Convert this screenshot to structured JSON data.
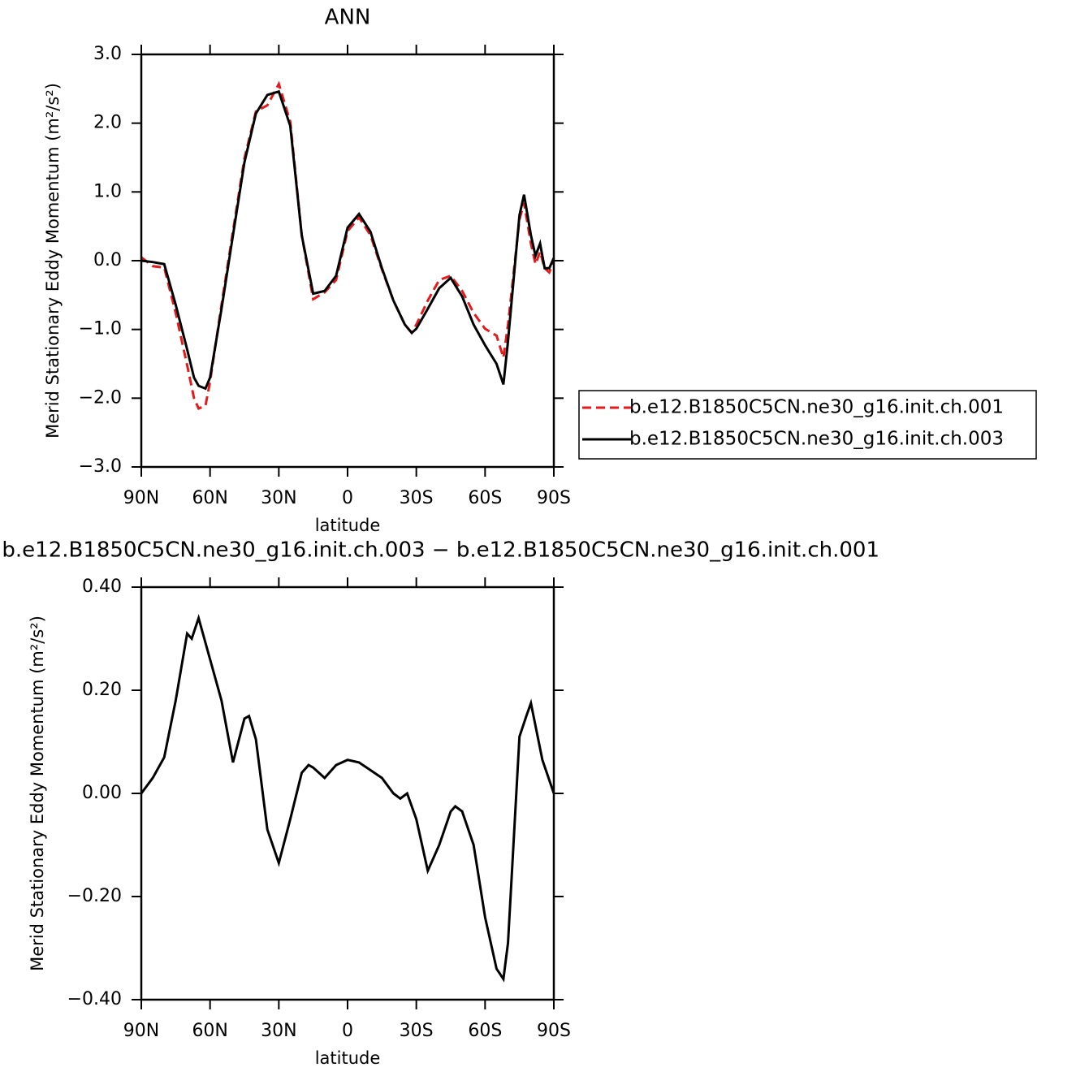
{
  "chart_data": [
    {
      "type": "line",
      "title": "ANN",
      "x_label": "latitude",
      "y_label": "Merid Stationary Eddy Momentum (m²/s²)",
      "xlim": [
        90,
        -90
      ],
      "xticks": [
        {
          "value": 90,
          "label": "90N"
        },
        {
          "value": 60,
          "label": "60N"
        },
        {
          "value": 30,
          "label": "30N"
        },
        0,
        {
          "value": -30,
          "label": "30S"
        },
        {
          "value": -60,
          "label": "60S"
        },
        {
          "value": -90,
          "label": "90S"
        }
      ],
      "ylim": [
        -3,
        3
      ],
      "yticks": [
        {
          "value": 3,
          "label": "3.0"
        },
        {
          "value": 2,
          "label": "2.0"
        },
        {
          "value": 1,
          "label": "1.0"
        },
        {
          "value": 0,
          "label": "0.0"
        },
        {
          "value": -1,
          "label": "−1.0"
        },
        {
          "value": -2,
          "label": "−2.0"
        },
        {
          "value": -3,
          "label": "−3.0"
        }
      ],
      "legend_position": "right",
      "x": [
        90,
        85,
        80,
        75,
        70,
        67,
        65,
        62,
        60,
        55,
        50,
        45,
        40,
        35,
        30,
        25,
        20,
        15,
        10,
        5,
        0,
        -5,
        -10,
        -15,
        -20,
        -25,
        -28,
        -30,
        -35,
        -40,
        -45,
        -50,
        -55,
        -60,
        -65,
        -68,
        -70,
        -75,
        -77,
        -80,
        -82,
        -84,
        -86,
        -88,
        -90
      ],
      "series": [
        {
          "name": "b.e12.B1850C5CN.ne30_g16.init.ch.001",
          "color": "#e41a1c",
          "line_style": "dashed",
          "values": [
            0.05,
            -0.08,
            -0.1,
            -0.76,
            -1.52,
            -2.0,
            -2.15,
            -2.11,
            -1.76,
            -0.64,
            0.43,
            1.49,
            2.17,
            2.26,
            2.57,
            2.02,
            0.37,
            -0.56,
            -0.46,
            -0.28,
            0.43,
            0.63,
            0.37,
            -0.13,
            -0.58,
            -0.93,
            -1.05,
            -0.93,
            -0.58,
            -0.28,
            -0.22,
            -0.44,
            -0.76,
            -0.99,
            -1.09,
            -1.41,
            -0.93,
            0.6,
            0.84,
            0.25,
            -0.05,
            0.13,
            -0.11,
            -0.17,
            0.0
          ]
        },
        {
          "name": "b.e12.B1850C5CN.ne30_g16.init.ch.003",
          "color": "#000000",
          "line_style": "solid",
          "values": [
            0.0,
            -0.02,
            -0.05,
            -0.64,
            -1.29,
            -1.7,
            -1.82,
            -1.86,
            -1.7,
            -0.7,
            0.37,
            1.43,
            2.14,
            2.41,
            2.46,
            1.96,
            0.37,
            -0.48,
            -0.44,
            -0.22,
            0.48,
            0.68,
            0.42,
            -0.11,
            -0.58,
            -0.93,
            -1.05,
            -0.99,
            -0.7,
            -0.4,
            -0.25,
            -0.52,
            -0.93,
            -1.23,
            -1.5,
            -1.8,
            -1.17,
            0.66,
            0.96,
            0.37,
            0.07,
            0.25,
            -0.11,
            -0.11,
            0.04
          ]
        }
      ]
    },
    {
      "type": "line",
      "title": "b.e12.B1850C5CN.ne30_g16.init.ch.003 − b.e12.B1850C5CN.ne30_g16.init.ch.001",
      "x_label": "latitude",
      "y_label": "Merid Stationary Eddy Momentum (m²/s²)",
      "xlim": [
        90,
        -90
      ],
      "xticks": [
        {
          "value": 90,
          "label": "90N"
        },
        {
          "value": 60,
          "label": "60N"
        },
        {
          "value": 30,
          "label": "30N"
        },
        0,
        {
          "value": -30,
          "label": "30S"
        },
        {
          "value": -60,
          "label": "60S"
        },
        {
          "value": -90,
          "label": "90S"
        }
      ],
      "ylim": [
        -0.4,
        0.4
      ],
      "yticks": [
        {
          "value": 0.4,
          "label": "0.40"
        },
        {
          "value": 0.2,
          "label": "0.20"
        },
        {
          "value": 0,
          "label": "0.00"
        },
        {
          "value": -0.2,
          "label": "−0.20"
        },
        {
          "value": -0.4,
          "label": "−0.40"
        }
      ],
      "x": [
        90,
        85,
        80,
        75,
        70,
        68,
        65,
        60,
        55,
        50,
        45,
        43,
        40,
        35,
        30,
        25,
        20,
        17,
        15,
        10,
        5,
        0,
        -5,
        -10,
        -15,
        -20,
        -23,
        -26,
        -30,
        -35,
        -40,
        -45,
        -47,
        -50,
        -55,
        -60,
        -65,
        -68,
        -70,
        -75,
        -78,
        -80,
        -85,
        -90
      ],
      "series": [
        {
          "color": "#000000",
          "line_style": "solid",
          "values": [
            0.0,
            0.03,
            0.07,
            0.18,
            0.31,
            0.3,
            0.34,
            0.26,
            0.18,
            0.06,
            0.145,
            0.15,
            0.105,
            -0.07,
            -0.135,
            -0.05,
            0.04,
            0.055,
            0.05,
            0.03,
            0.055,
            0.065,
            0.06,
            0.045,
            0.03,
            0.0,
            -0.01,
            0.0,
            -0.05,
            -0.15,
            -0.1,
            -0.035,
            -0.025,
            -0.035,
            -0.1,
            -0.24,
            -0.34,
            -0.36,
            -0.29,
            0.11,
            0.15,
            0.175,
            0.065,
            0.0
          ]
        }
      ]
    }
  ]
}
